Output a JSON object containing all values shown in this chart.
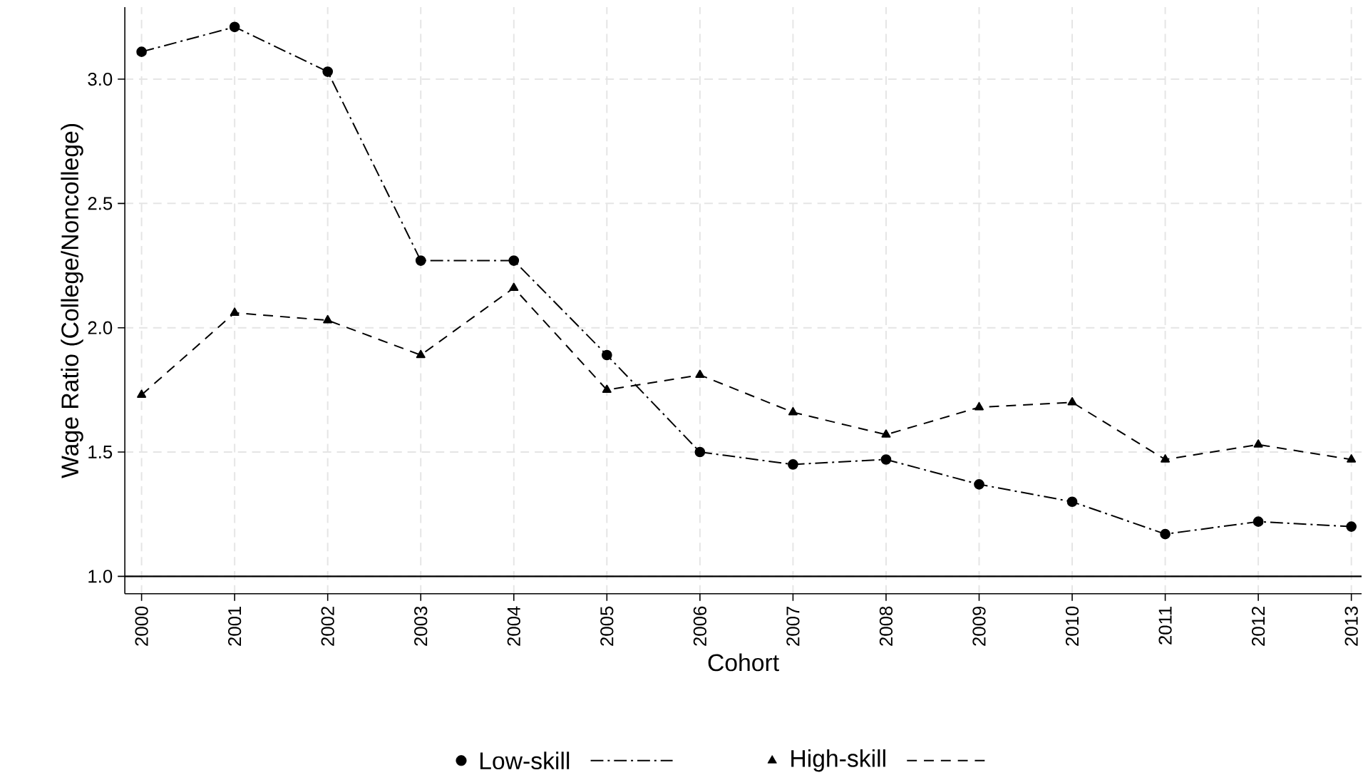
{
  "chart_data": {
    "type": "line",
    "xlabel": "Cohort",
    "ylabel": "Wage Ratio (College/Noncollege)",
    "categories": [
      "2000",
      "2001",
      "2002",
      "2003",
      "2004",
      "2005",
      "2006",
      "2007",
      "2008",
      "2009",
      "2010",
      "2011",
      "2012",
      "2013"
    ],
    "series": [
      {
        "name": "Low-skill",
        "color": "#000000",
        "marker": "circle",
        "line_style": "dashdot",
        "values": [
          3.11,
          3.21,
          3.03,
          2.27,
          2.27,
          1.89,
          1.5,
          1.45,
          1.47,
          1.37,
          1.3,
          1.17,
          1.22,
          1.2
        ]
      },
      {
        "name": "High-skill",
        "color": "#000000",
        "marker": "triangle",
        "line_style": "dashed",
        "values": [
          1.73,
          2.06,
          2.03,
          1.89,
          2.16,
          1.75,
          1.81,
          1.66,
          1.57,
          1.68,
          1.7,
          1.47,
          1.53,
          1.47
        ]
      }
    ],
    "ylim": [
      0.93,
      3.29
    ],
    "yticks": [
      {
        "value": 1,
        "label": "1.0"
      },
      1.5,
      {
        "value": 2,
        "label": "2.0"
      },
      2.5,
      {
        "value": 3,
        "label": "3.0"
      }
    ],
    "ref_lines": [
      {
        "axis": "y",
        "value": 1,
        "color": "#000000",
        "line_style": "solid"
      }
    ],
    "grid": true,
    "legend": "bottom"
  }
}
